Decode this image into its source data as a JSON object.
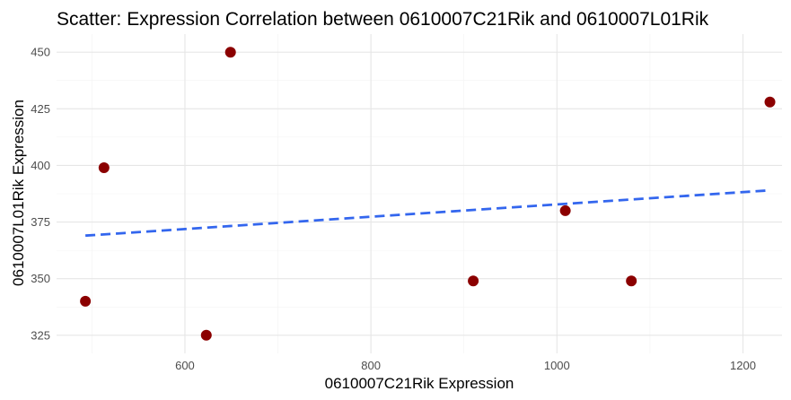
{
  "chart_data": {
    "type": "scatter",
    "title": "Scatter: Expression Correlation between 0610007C21Rik and 0610007L01Rik",
    "xlabel": "0610007C21Rik Expression",
    "ylabel": "0610007L01Rik Expression",
    "xlim": [
      462,
      1242
    ],
    "ylim": [
      317,
      458
    ],
    "x_ticks": [
      600,
      800,
      1000,
      1200
    ],
    "y_ticks": [
      325,
      350,
      375,
      400,
      425,
      450
    ],
    "grid": true,
    "points": [
      {
        "x": 493,
        "y": 340
      },
      {
        "x": 513,
        "y": 399
      },
      {
        "x": 623,
        "y": 325
      },
      {
        "x": 649,
        "y": 450
      },
      {
        "x": 910,
        "y": 349
      },
      {
        "x": 1009,
        "y": 380
      },
      {
        "x": 1080,
        "y": 349
      },
      {
        "x": 1229,
        "y": 428
      }
    ],
    "trendline": {
      "style": "dashed",
      "x": [
        493,
        1229
      ],
      "y": [
        369,
        389
      ]
    },
    "colors": {
      "points": "#8b0000",
      "trendline": "#3366ee"
    }
  }
}
